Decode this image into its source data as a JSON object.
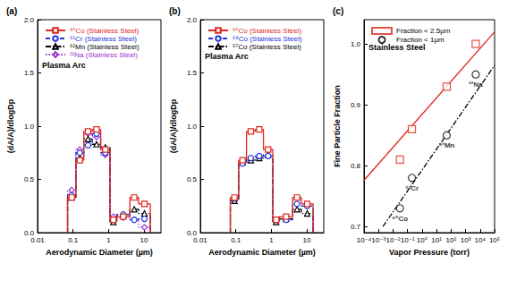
{
  "chart_data": [
    {
      "type": "line",
      "title": "(a)",
      "annotation": "Plasma Arc",
      "xlabel": "Aerodynamic Diameter (µm)",
      "ylabel": "(dA/A)/dlogDp",
      "log": "x",
      "legend": "upper left",
      "xlim": [
        0.01,
        30
      ],
      "xticks": [
        0.01,
        0.1,
        1,
        10
      ],
      "ylim": [
        0,
        2
      ],
      "yticks": [
        {
          "value": 0,
          "label": "0.0"
        },
        {
          "value": 0.5,
          "label": "0.5"
        },
        {
          "value": 1,
          "label": "1.0"
        },
        {
          "value": 1.5,
          "label": "1.5"
        },
        {
          "value": 2,
          "label": "2.0"
        }
      ],
      "bins": [
        0.07,
        0.12,
        0.2,
        0.35,
        0.6,
        1.1,
        1.7,
        4,
        7,
        15
      ],
      "series": [
        {
          "name": "⁶⁰Co (Stainless Steel)",
          "color": "#e0251c",
          "marker": "square",
          "line_style": "solid",
          "values": [
            0.33,
            0.68,
            0.95,
            0.97,
            0.78,
            0.12,
            0.15,
            0.33,
            0.27
          ]
        },
        {
          "name": "⁵¹Cr (Stainless Steel)",
          "color": "#2233dd",
          "marker": "circle",
          "line_style": "dash",
          "values": [
            0.35,
            0.75,
            0.82,
            0.93,
            0.75,
            0.12,
            0.17,
            0.12,
            0.13
          ]
        },
        {
          "name": "⁵²Mn (Stainless Steel)",
          "color": "#000000",
          "marker": "triangle",
          "line_style": "dashdot",
          "values": [
            0.33,
            0.7,
            0.88,
            0.83,
            0.8,
            0.1,
            0.17,
            0.22,
            0.18
          ]
        },
        {
          "name": "²²Na (Stainless Steel)",
          "color": "#9b2fd0",
          "marker": "diamond",
          "line_style": "dot",
          "values": [
            0.4,
            0.78,
            0.93,
            0.9,
            0.73,
            0.15,
            0.14,
            0.12,
            0.05
          ]
        }
      ]
    },
    {
      "type": "line",
      "title": "(b)",
      "annotation": "Plasma Arc",
      "xlabel": "Aerodynamic Diameter (µm)",
      "ylabel": "(dA/A)/dlogDp",
      "log": "x",
      "legend": "upper left",
      "xlim": [
        0.01,
        30
      ],
      "xticks": [
        0.01,
        0.1,
        1,
        10
      ],
      "ylim": [
        0,
        2
      ],
      "yticks": [
        {
          "value": 0,
          "label": "0.0"
        },
        {
          "value": 0.5,
          "label": "0.5"
        },
        {
          "value": 1,
          "label": "1.0"
        },
        {
          "value": 1.5,
          "label": "1.5"
        },
        {
          "value": 2,
          "label": "2.0"
        }
      ],
      "bins": [
        0.07,
        0.12,
        0.2,
        0.35,
        0.6,
        1.1,
        1.7,
        4,
        7,
        15
      ],
      "series": [
        {
          "name": "⁶⁰Co (Stainless Steel)",
          "color": "#e0251c",
          "marker": "square",
          "line_style": "solid",
          "values": [
            0.33,
            0.68,
            0.95,
            0.97,
            0.78,
            0.12,
            0.15,
            0.33,
            0.27
          ]
        },
        {
          "name": "⁵⁸Co (Stainless Steel)",
          "color": "#2233dd",
          "marker": "circle",
          "line_style": "dash",
          "values": [
            0.32,
            0.65,
            0.7,
            0.72,
            0.72,
            0.12,
            0.12,
            0.27,
            0.25
          ]
        },
        {
          "name": "⁵⁷Co (Stainless Steel)",
          "color": "#000000",
          "marker": "triangle",
          "line_style": "dashdot",
          "values": [
            0.3,
            0.66,
            0.68,
            0.7,
            0.73,
            0.1,
            0.13,
            0.22,
            0.18
          ]
        }
      ]
    },
    {
      "type": "scatter",
      "title": "(c)",
      "annotation": "Stainless Steel",
      "xlabel": "Vapor Pressure (torr)",
      "ylabel": "Fine Particle Fraction",
      "log": "x",
      "legend": "upper left",
      "xlim": [
        0.0001,
        100000
      ],
      "xticks": [
        {
          "value": 0.0001,
          "label": "10⁻⁴"
        },
        {
          "value": 0.001,
          "label": "10⁻³"
        },
        {
          "value": 0.01,
          "label": "10⁻²"
        },
        {
          "value": 0.1,
          "label": "10⁻¹"
        },
        {
          "value": 1,
          "label": "10⁰"
        },
        {
          "value": 10,
          "label": "10¹"
        },
        {
          "value": 100,
          "label": "10²"
        },
        {
          "value": 1000,
          "label": "10³"
        },
        {
          "value": 10000,
          "label": "10⁴"
        },
        {
          "value": 100000,
          "label": "10⁵"
        }
      ],
      "ylim": [
        0.69,
        1.04
      ],
      "yticks": [
        0.7,
        0.8,
        0.9,
        {
          "value": 1,
          "label": "1.0"
        }
      ],
      "series": [
        {
          "name": "Fraction < 2.5µm",
          "color": "#e0251c",
          "marker": "square",
          "x": [
            0.03,
            0.2,
            50,
            5000
          ],
          "values": [
            0.81,
            0.86,
            0.93,
            1.0
          ],
          "fit": {
            "line_style": "solid",
            "x": [
              0.0001,
              100000
            ],
            "values": [
              0.776,
              1.02
            ]
          }
        },
        {
          "name": "Fraction < 1µm",
          "color": "#000000",
          "marker": "circle",
          "x": [
            0.03,
            0.2,
            50,
            5000
          ],
          "values": [
            0.73,
            0.78,
            0.85,
            0.95
          ],
          "point_labels": [
            "⁶⁰Co",
            "⁵¹Cr",
            "⁵²Mn",
            "²²Na"
          ],
          "fit": {
            "line_style": "dashdot",
            "x": [
              0.002,
              100000
            ],
            "values": [
              0.7,
              0.965
            ]
          }
        }
      ]
    }
  ]
}
